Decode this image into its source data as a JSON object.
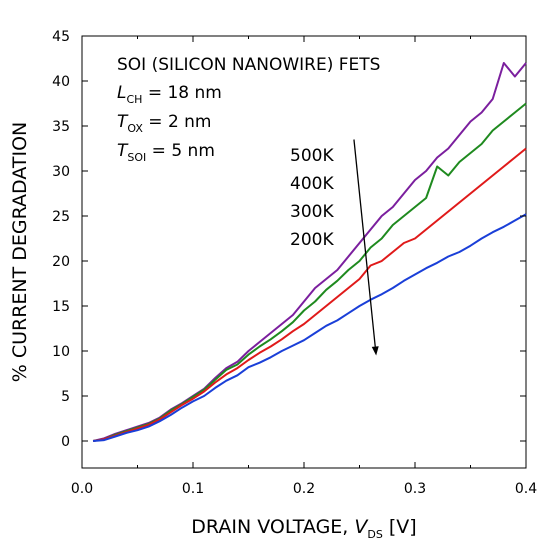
{
  "chart_data": {
    "type": "line",
    "xlabel_prefix": "DRAIN VOLTAGE, ",
    "xlabel_var": "V",
    "xlabel_sub": "DS",
    "xlabel_unit": " [V]",
    "ylabel": "% CURRENT DEGRADATION",
    "xlim": [
      0.0,
      0.4
    ],
    "ylim": [
      -3,
      45
    ],
    "x_ticks": [
      0.0,
      0.1,
      0.2,
      0.3,
      0.4
    ],
    "x_tick_labels": [
      "0.0",
      "0.1",
      "0.2",
      "0.3",
      "0.4"
    ],
    "y_ticks": [
      0,
      5,
      10,
      15,
      20,
      25,
      30,
      35,
      40,
      45
    ],
    "y_tick_labels": [
      "0",
      "5",
      "10",
      "15",
      "20",
      "25",
      "30",
      "35",
      "40",
      "45"
    ],
    "grid": false,
    "annotations": {
      "title": "SOI (SILICON NANOWIRE) FETS",
      "params": [
        {
          "var": "L",
          "sub": "CH",
          "value": " = 18 nm"
        },
        {
          "var": "T",
          "sub": "OX",
          "value": " = 2 nm"
        },
        {
          "var": "T",
          "sub": "SOI",
          "value": " = 5 nm"
        }
      ],
      "temperature_labels": [
        "500K",
        "400K",
        "300K",
        "200K"
      ],
      "arrow": {
        "from": [
          0.245,
          33.5
        ],
        "to": [
          0.265,
          9.5
        ]
      }
    },
    "series": [
      {
        "name": "500K",
        "color": "#7b1f9e",
        "x": [
          0.01,
          0.02,
          0.03,
          0.04,
          0.05,
          0.06,
          0.07,
          0.08,
          0.09,
          0.1,
          0.11,
          0.12,
          0.13,
          0.14,
          0.15,
          0.16,
          0.17,
          0.18,
          0.19,
          0.2,
          0.21,
          0.22,
          0.23,
          0.24,
          0.25,
          0.26,
          0.27,
          0.28,
          0.29,
          0.3,
          0.31,
          0.32,
          0.33,
          0.34,
          0.35,
          0.36,
          0.37,
          0.38,
          0.39,
          0.4
        ],
        "y": [
          0.0,
          0.3,
          0.8,
          1.2,
          1.6,
          2.0,
          2.6,
          3.5,
          4.2,
          5.0,
          5.8,
          7.0,
          8.1,
          8.8,
          10.0,
          11.0,
          12.0,
          13.0,
          14.0,
          15.5,
          17.0,
          18.0,
          19.0,
          20.5,
          22.0,
          23.5,
          25.0,
          26.0,
          27.5,
          29.0,
          30.0,
          31.5,
          32.5,
          34.0,
          35.5,
          36.5,
          38.0,
          42.0,
          40.5,
          42.0
        ]
      },
      {
        "name": "400K",
        "color": "#1f8a1f",
        "x": [
          0.01,
          0.02,
          0.03,
          0.04,
          0.05,
          0.06,
          0.07,
          0.08,
          0.09,
          0.1,
          0.11,
          0.12,
          0.13,
          0.14,
          0.15,
          0.16,
          0.17,
          0.18,
          0.19,
          0.2,
          0.21,
          0.22,
          0.23,
          0.24,
          0.25,
          0.26,
          0.27,
          0.28,
          0.29,
          0.3,
          0.31,
          0.32,
          0.33,
          0.34,
          0.35,
          0.36,
          0.37,
          0.38,
          0.39,
          0.4
        ],
        "y": [
          0.0,
          0.2,
          0.7,
          1.1,
          1.5,
          1.9,
          2.5,
          3.4,
          4.1,
          4.9,
          5.7,
          6.8,
          7.9,
          8.5,
          9.6,
          10.5,
          11.3,
          12.2,
          13.2,
          14.5,
          15.5,
          16.8,
          17.8,
          19.0,
          20.0,
          21.5,
          22.5,
          24.0,
          25.0,
          26.0,
          27.0,
          30.5,
          29.5,
          31.0,
          32.0,
          33.0,
          34.5,
          35.5,
          36.5,
          37.5
        ]
      },
      {
        "name": "300K",
        "color": "#e01a1a",
        "x": [
          0.01,
          0.02,
          0.03,
          0.04,
          0.05,
          0.06,
          0.07,
          0.08,
          0.09,
          0.1,
          0.11,
          0.12,
          0.13,
          0.14,
          0.15,
          0.16,
          0.17,
          0.18,
          0.19,
          0.2,
          0.21,
          0.22,
          0.23,
          0.24,
          0.25,
          0.26,
          0.27,
          0.28,
          0.29,
          0.3,
          0.31,
          0.32,
          0.33,
          0.34,
          0.35,
          0.36,
          0.37,
          0.38,
          0.39,
          0.4
        ],
        "y": [
          0.0,
          0.2,
          0.6,
          1.0,
          1.4,
          1.8,
          2.4,
          3.2,
          4.0,
          4.7,
          5.5,
          6.5,
          7.4,
          8.1,
          9.0,
          9.8,
          10.5,
          11.3,
          12.2,
          13.0,
          14.0,
          15.0,
          16.0,
          17.0,
          18.0,
          19.5,
          20.0,
          21.0,
          22.0,
          22.5,
          23.5,
          24.5,
          25.5,
          26.5,
          27.5,
          28.5,
          29.5,
          30.5,
          31.5,
          32.5
        ]
      },
      {
        "name": "200K",
        "color": "#1a3fd8",
        "x": [
          0.01,
          0.02,
          0.03,
          0.04,
          0.05,
          0.06,
          0.07,
          0.08,
          0.09,
          0.1,
          0.11,
          0.12,
          0.13,
          0.14,
          0.15,
          0.16,
          0.17,
          0.18,
          0.19,
          0.2,
          0.21,
          0.22,
          0.23,
          0.24,
          0.25,
          0.26,
          0.27,
          0.28,
          0.29,
          0.3,
          0.31,
          0.32,
          0.33,
          0.34,
          0.35,
          0.36,
          0.37,
          0.38,
          0.39,
          0.4
        ],
        "y": [
          0.0,
          0.1,
          0.5,
          0.9,
          1.2,
          1.6,
          2.2,
          2.9,
          3.7,
          4.4,
          5.0,
          5.9,
          6.7,
          7.3,
          8.2,
          8.7,
          9.3,
          10.0,
          10.6,
          11.2,
          12.0,
          12.8,
          13.4,
          14.2,
          15.0,
          15.7,
          16.3,
          17.0,
          17.8,
          18.5,
          19.2,
          19.8,
          20.5,
          21.0,
          21.7,
          22.5,
          23.2,
          23.8,
          24.5,
          25.2
        ]
      }
    ]
  }
}
